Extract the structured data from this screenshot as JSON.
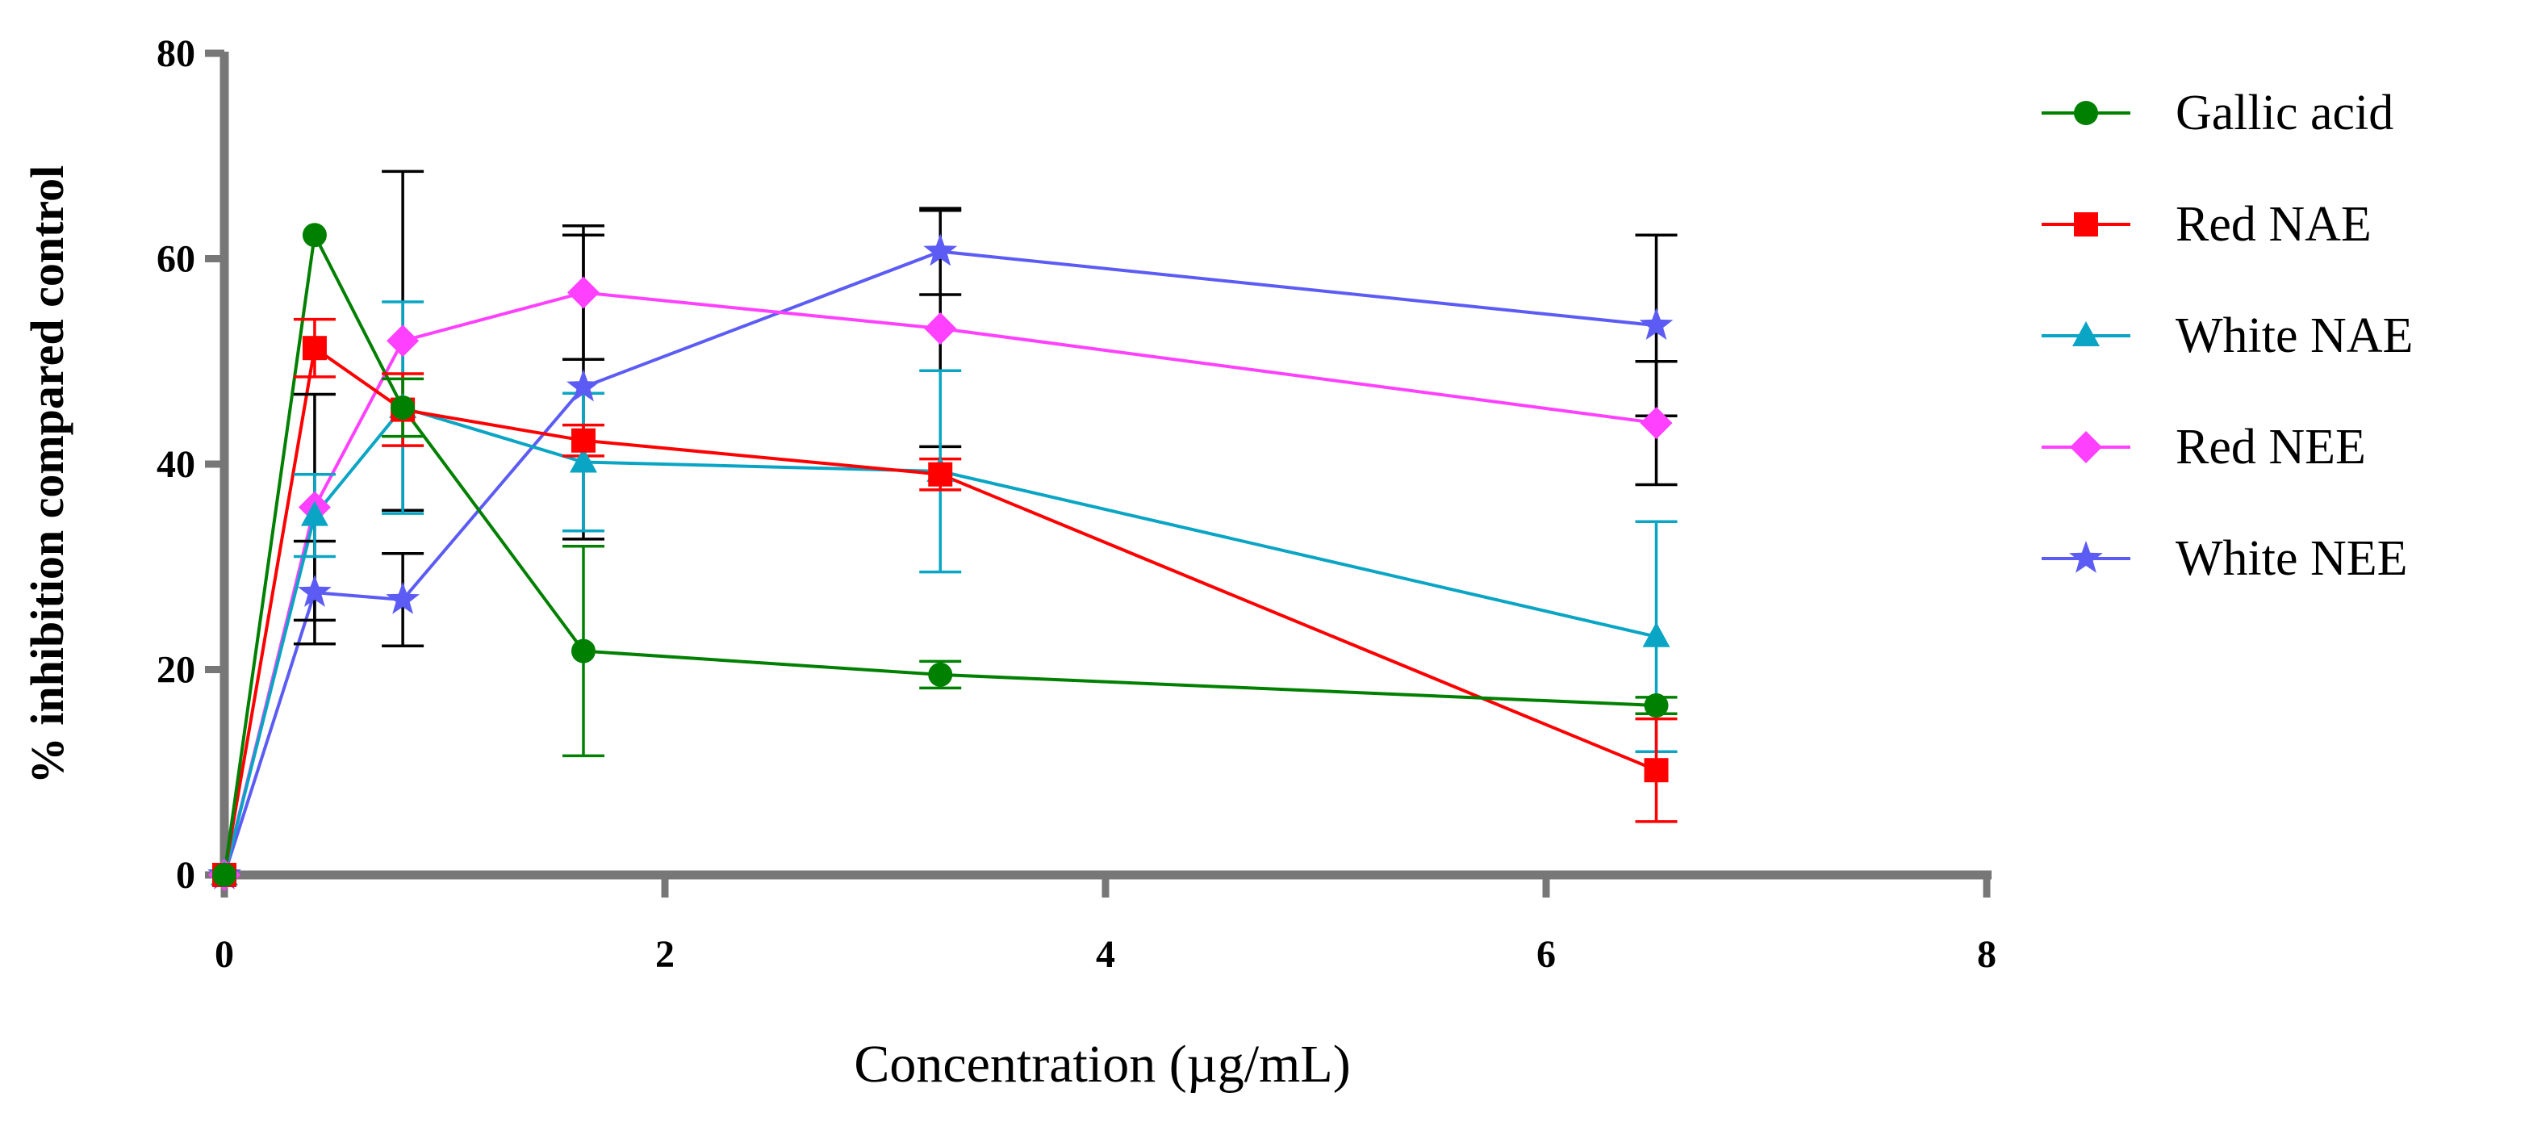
{
  "chart_data": {
    "type": "line",
    "title": "",
    "xlabel": "Concentration (µg/mL)",
    "ylabel": "% inhibition compared control",
    "xlim": [
      0,
      8
    ],
    "ylim": [
      0,
      80
    ],
    "xticks": [
      0,
      2,
      4,
      6,
      8
    ],
    "yticks": [
      0,
      20,
      40,
      60,
      80
    ],
    "xtick_labels": [
      "0",
      "2",
      "4",
      "6",
      "8"
    ],
    "ytick_labels": [
      "0",
      "20",
      "40",
      "60",
      "80"
    ],
    "grid": false,
    "legend_position": "right",
    "x": [
      0,
      0.41,
      0.81,
      1.63,
      3.25,
      6.5
    ],
    "series": [
      {
        "name": "Gallic acid",
        "color": "#008000",
        "marker": "circle",
        "values": [
          0,
          62.3,
          45.5,
          21.8,
          19.5,
          16.5
        ],
        "errors": [
          0,
          0,
          2.8,
          10.2,
          1.3,
          0.8
        ]
      },
      {
        "name": "Red NAE",
        "color": "#ff0000",
        "marker": "square",
        "values": [
          0,
          51.3,
          45.3,
          42.3,
          39.0,
          10.2
        ],
        "errors": [
          0,
          2.8,
          3.5,
          1.5,
          1.5,
          5.0
        ]
      },
      {
        "name": "White NAE",
        "color": "#0aa5c4",
        "marker": "triangle",
        "values": [
          0,
          35.0,
          45.5,
          40.2,
          39.3,
          23.2
        ],
        "errors": [
          0,
          4.0,
          10.3,
          6.7,
          9.8,
          11.2
        ]
      },
      {
        "name": "Red NEE",
        "color": "#ff40ff",
        "marker": "diamond",
        "values": [
          0,
          35.8,
          52.0,
          56.7,
          53.2,
          44.0
        ],
        "errors": [
          0,
          11.0,
          16.5,
          6.5,
          11.5,
          6.0
        ]
      },
      {
        "name": "White NEE",
        "color": "#5c5cf5",
        "marker": "star",
        "values": [
          0,
          27.5,
          26.8,
          47.5,
          60.7,
          53.5
        ],
        "errors": [
          0,
          5.0,
          4.5,
          14.8,
          4.2,
          8.8
        ]
      }
    ]
  }
}
